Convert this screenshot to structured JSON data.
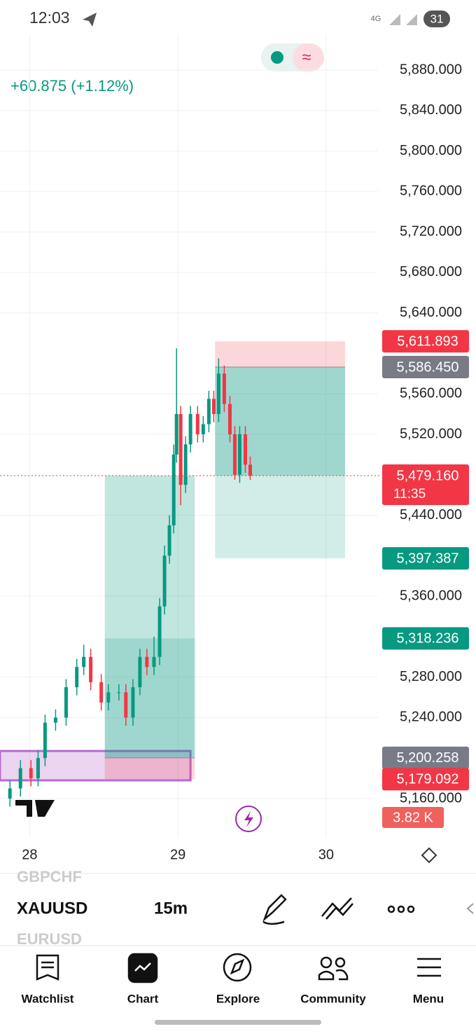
{
  "status_bar": {
    "time": "12:03",
    "network": "4G",
    "battery": "31"
  },
  "chart_data": {
    "type": "candlestick",
    "change": "+60.875 (+1.12%)",
    "x": [
      27.867,
      27.938,
      28.009,
      28.057,
      28.104,
      28.175,
      28.246,
      28.318,
      28.365,
      28.412,
      28.483,
      28.531,
      28.602,
      28.649,
      28.697,
      28.744,
      28.791,
      28.839,
      28.877,
      28.91,
      28.943,
      28.972,
      28.991,
      29.019,
      29.052,
      29.085,
      29.133,
      29.171,
      29.209,
      29.242,
      29.275,
      29.313,
      29.351,
      29.384,
      29.417,
      29.455,
      29.488
    ],
    "open": [
      5160,
      5170,
      5190,
      5180,
      5200,
      5235,
      5240,
      5270,
      5290,
      5300,
      5275,
      5255,
      5265,
      5265,
      5240,
      5270,
      5300,
      5290,
      5300,
      5350,
      5400,
      5430,
      5500,
      5540,
      5470,
      5510,
      5540,
      5520,
      5530,
      5555,
      5540,
      5580,
      5550,
      5520,
      5480,
      5520,
      5490
    ],
    "high": [
      5178,
      5198,
      5198,
      5208,
      5243,
      5248,
      5278,
      5298,
      5312,
      5308,
      5283,
      5273,
      5273,
      5273,
      5278,
      5308,
      5308,
      5320,
      5358,
      5410,
      5440,
      5510,
      5605,
      5548,
      5518,
      5548,
      5548,
      5538,
      5563,
      5563,
      5595,
      5588,
      5558,
      5528,
      5528,
      5528,
      5498
    ],
    "low": [
      5152,
      5162,
      5172,
      5172,
      5192,
      5227,
      5232,
      5262,
      5282,
      5267,
      5247,
      5247,
      5257,
      5232,
      5232,
      5262,
      5282,
      5282,
      5292,
      5342,
      5392,
      5422,
      5492,
      5450,
      5462,
      5502,
      5512,
      5512,
      5522,
      5532,
      5532,
      5542,
      5512,
      5475,
      5472,
      5482,
      5475
    ],
    "close": [
      5170,
      5190,
      5180,
      5200,
      5235,
      5240,
      5270,
      5290,
      5300,
      5275,
      5255,
      5265,
      5265,
      5240,
      5270,
      5300,
      5290,
      5300,
      5350,
      5400,
      5430,
      5500,
      5540,
      5470,
      5510,
      5540,
      5520,
      5530,
      5555,
      5540,
      5580,
      5550,
      5520,
      5480,
      5520,
      5490,
      5479.16
    ],
    "up_color": "#089981",
    "down_color": "#f23645",
    "xlim": [
      27.8,
      30.35
    ],
    "xticks": [
      28,
      29,
      30
    ],
    "ylim": [
      5160,
      5880
    ],
    "yticks": [
      {
        "value": 5880,
        "label": "5,880.000"
      },
      {
        "value": 5840,
        "label": "5,840.000"
      },
      {
        "value": 5800,
        "label": "5,800.000"
      },
      {
        "value": 5760,
        "label": "5,760.000"
      },
      {
        "value": 5720,
        "label": "5,720.000"
      },
      {
        "value": 5680,
        "label": "5,680.000"
      },
      {
        "value": 5640,
        "label": "5,640.000"
      },
      {
        "value": 5560,
        "label": "5,560.000"
      },
      {
        "value": 5520,
        "label": "5,520.000"
      },
      {
        "value": 5440,
        "label": "5,440.000"
      },
      {
        "value": 5360,
        "label": "5,360.000"
      },
      {
        "value": 5280,
        "label": "5,280.000"
      },
      {
        "value": 5240,
        "label": "5,240.000"
      },
      {
        "value": 5160,
        "label": "5,160.000"
      }
    ],
    "grid": true,
    "positions": [
      {
        "x": [
          29.251,
          30.128
        ],
        "stop": 5611.893,
        "entry": 5586.45,
        "target": 5397.387
      },
      {
        "x": [
          28.507,
          29.114
        ],
        "stop": 5179.092,
        "entry": 5200.258,
        "target": 5318.236
      }
    ],
    "zone": {
      "x": [
        27.8,
        29.085
      ],
      "y": [
        5178,
        5207
      ]
    },
    "price_tags": [
      {
        "value": 5611.893,
        "label": "5,611.893",
        "color": "#f23645"
      },
      {
        "value": 5586.45,
        "label": "5,586.450",
        "color": "#787b86"
      },
      {
        "value": 5479.16,
        "label": "5,479.160",
        "color": "#f23645"
      },
      {
        "value": 5397.387,
        "label": "5,397.387",
        "color": "#089981"
      },
      {
        "value": 5318.236,
        "label": "5,318.236",
        "color": "#089981"
      },
      {
        "value": 5200.258,
        "label": "5,200.258",
        "color": "#787b86"
      },
      {
        "value": 5179.092,
        "label": "5,179.092",
        "color": "#f23645"
      }
    ],
    "countdown": "11:35",
    "volume_label": "3.82 K"
  },
  "toolbar": {
    "prev_symbol": "GBPCHF",
    "symbol": "XAUUSD",
    "interval": "15m",
    "next_symbol": "EURUSD"
  },
  "nav": [
    "Watchlist",
    "Chart",
    "Explore",
    "Community",
    "Menu"
  ]
}
